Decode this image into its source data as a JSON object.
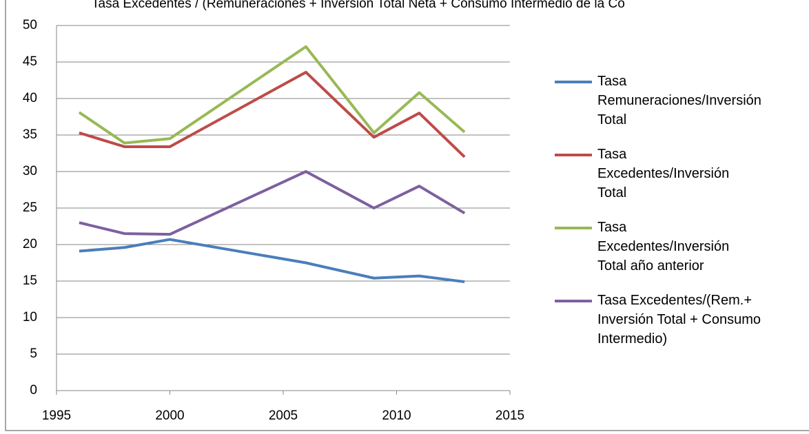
{
  "chart_data": {
    "type": "line",
    "title": "Tasa Excedentes / (Remuneraciones + Inversión Total Neta + Consumo Intermedio de la Co",
    "x": [
      1996,
      1998,
      2000,
      2006,
      2009,
      2011,
      2013
    ],
    "series": [
      {
        "name": "Tasa Remuneraciones/Inversión Total",
        "color": "#4a7ebb",
        "values": [
          19.1,
          19.6,
          20.7,
          17.5,
          15.4,
          15.7,
          14.9
        ]
      },
      {
        "name": "Tasa Excedentes/Inversión Total",
        "color": "#be4b48",
        "values": [
          35.3,
          33.4,
          33.4,
          43.6,
          34.7,
          38.0,
          32.0
        ]
      },
      {
        "name": "Tasa Excedentes/Inversión Total año anterior",
        "color": "#98b954",
        "values": [
          38.1,
          33.9,
          34.5,
          47.1,
          35.3,
          40.8,
          35.4
        ]
      },
      {
        "name": "Tasa Excedentes/(Rem.+ Inversión Total + Consumo Intermedio)",
        "color": "#7d60a0",
        "values": [
          23.0,
          21.5,
          21.4,
          30.0,
          25.0,
          28.0,
          24.3
        ]
      }
    ],
    "xlim": [
      1995,
      2015
    ],
    "xticks": [
      1995,
      2000,
      2005,
      2010,
      2015
    ],
    "ylim": [
      0,
      50
    ],
    "yticks": [
      0,
      5,
      10,
      15,
      20,
      25,
      30,
      35,
      40,
      45,
      50
    ],
    "grid": true,
    "legend": "right"
  }
}
